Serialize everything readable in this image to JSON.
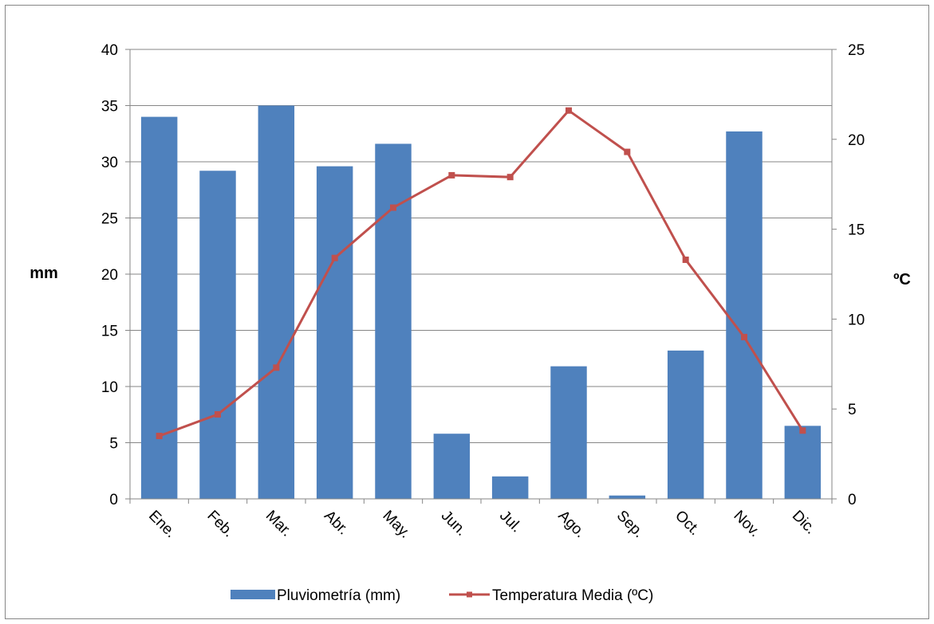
{
  "chart_data": {
    "type": "bar",
    "categories": [
      "Ene.",
      "Feb.",
      "Mar.",
      "Abr.",
      "May.",
      "Jun.",
      "Jul.",
      "Ago.",
      "Sep.",
      "Oct.",
      "Nov.",
      "Dic."
    ],
    "series": [
      {
        "name": "Pluviometría (mm)",
        "type": "bar",
        "axis": "left",
        "color": "#4F81BD",
        "values": [
          34.0,
          29.2,
          35.0,
          29.6,
          31.6,
          5.8,
          2.0,
          11.8,
          0.3,
          13.2,
          32.7,
          6.5
        ]
      },
      {
        "name": "Temperatura Media (ºC)",
        "type": "line",
        "axis": "right",
        "color": "#C0504D",
        "values": [
          3.5,
          4.7,
          7.3,
          13.4,
          16.2,
          18.0,
          17.9,
          21.6,
          19.3,
          13.3,
          9.0,
          3.8
        ]
      }
    ],
    "title": "",
    "xlabel": "",
    "ylabel": "mm",
    "y2label": "ºC",
    "ylim": [
      0,
      40
    ],
    "y2lim": [
      0,
      25
    ],
    "yticks": [
      "0",
      "5",
      "10",
      "15",
      "20",
      "25",
      "30",
      "35",
      "40"
    ],
    "y2ticks": [
      "0",
      "5",
      "10",
      "15",
      "20",
      "25"
    ],
    "grid": true,
    "legend": "bottom"
  }
}
